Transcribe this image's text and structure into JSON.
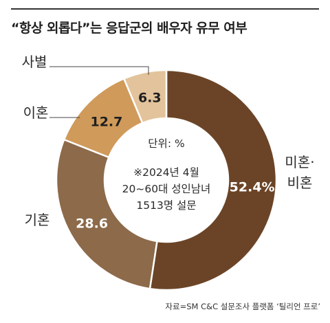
{
  "title": "“항상 외롭다”는 응답군의 배우자 유무 여부",
  "source": "자료=SM C&C 설문조사 플랫폼 ‘틸리언 프로’",
  "chart_data": {
    "type": "pie",
    "style": "donut",
    "unit": "%",
    "slices": [
      {
        "label": "미혼·비혼",
        "value": 52.4,
        "display": "52.4%",
        "color": "#6b4427"
      },
      {
        "label": "기혼",
        "value": 28.6,
        "display": "28.6",
        "color": "#8c6a4a"
      },
      {
        "label": "이혼",
        "value": 12.7,
        "display": "12.7",
        "color": "#cf9a5a"
      },
      {
        "label": "사별",
        "value": 6.3,
        "display": "6.3",
        "color": "#e3c39b"
      }
    ],
    "center_lines": [
      "단위: %",
      "※2024년 4월",
      "20~60대 성인남녀",
      "1513명 설문"
    ]
  }
}
